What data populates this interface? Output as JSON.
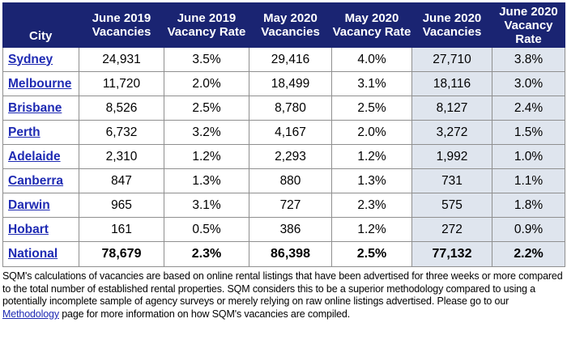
{
  "headers": {
    "city": "City",
    "cols": [
      {
        "l1": "June 2019",
        "l2": "Vacancies"
      },
      {
        "l1": "June 2019",
        "l2": "Vacancy Rate"
      },
      {
        "l1": "May 2020",
        "l2": "Vacancies"
      },
      {
        "l1": "May 2020",
        "l2": "Vacancy Rate"
      },
      {
        "l1": "June 2020",
        "l2": "Vacancies"
      },
      {
        "l1": "June 2020",
        "l2": "Vacancy Rate"
      }
    ]
  },
  "rows": [
    {
      "city": "Sydney",
      "values": [
        "24,931",
        "3.5%",
        "29,416",
        "4.0%",
        "27,710",
        "3.8%"
      ]
    },
    {
      "city": "Melbourne",
      "values": [
        "11,720",
        "2.0%",
        "18,499",
        "3.1%",
        "18,116",
        "3.0%"
      ]
    },
    {
      "city": "Brisbane",
      "values": [
        "8,526",
        "2.5%",
        "8,780",
        "2.5%",
        "8,127",
        "2.4%"
      ]
    },
    {
      "city": "Perth",
      "values": [
        "6,732",
        "3.2%",
        "4,167",
        "2.0%",
        "3,272",
        "1.5%"
      ]
    },
    {
      "city": "Adelaide",
      "values": [
        "2,310",
        "1.2%",
        "2,293",
        "1.2%",
        "1,992",
        "1.0%"
      ]
    },
    {
      "city": "Canberra",
      "values": [
        "847",
        "1.3%",
        "880",
        "1.3%",
        "731",
        "1.1%"
      ]
    },
    {
      "city": "Darwin",
      "values": [
        "965",
        "3.1%",
        "727",
        "2.3%",
        "575",
        "1.8%"
      ]
    },
    {
      "city": "Hobart",
      "values": [
        "161",
        "0.5%",
        "386",
        "1.2%",
        "272",
        "0.9%"
      ]
    },
    {
      "city": "National",
      "values": [
        "78,679",
        "2.3%",
        "86,398",
        "2.5%",
        "77,132",
        "2.2%"
      ]
    }
  ],
  "note": {
    "before": "SQM's calculations of vacancies are based on online rental listings that have been advertised for three weeks or more compared to the total number of established rental properties. SQM considers this to be a superior methodology compared to using a potentially incomplete sample of agency surveys or merely relying on raw online listings advertised. Please go to our ",
    "link": "Methodology",
    "after": " page for more information on how SQM's vacancies are compiled."
  },
  "colors": {
    "header_bg": "#1a2472",
    "link": "#1e2ab3",
    "shade": "#dfe5ee"
  }
}
